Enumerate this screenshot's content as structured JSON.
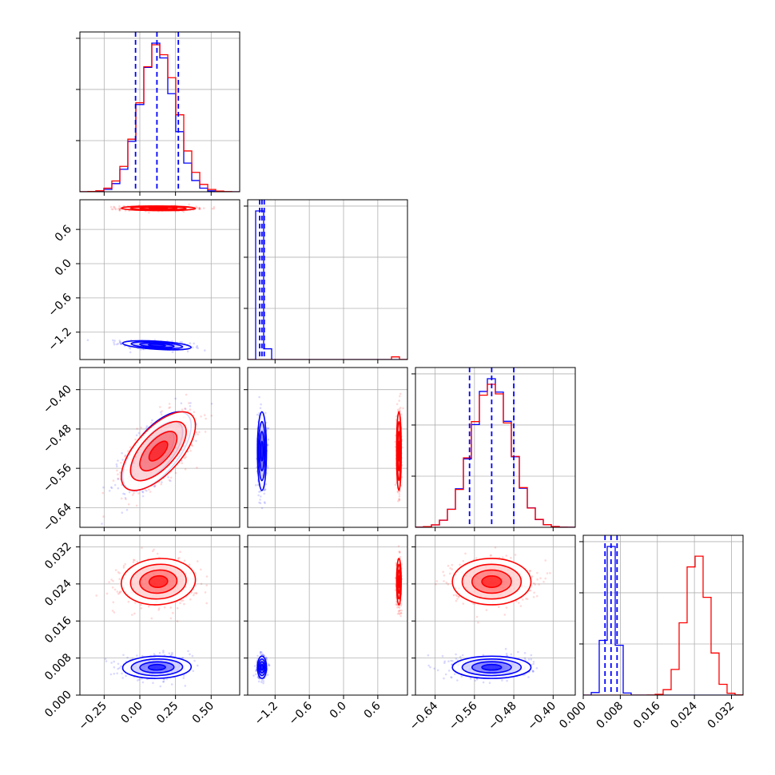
{
  "colors": {
    "series_a": "#ff0000",
    "series_b": "#0000ff",
    "grid": "#b0b0b0",
    "frame": "#000000"
  },
  "chart_data": {
    "type": "corner",
    "grid": true,
    "series": [
      {
        "name": "",
        "color": "#ff0000",
        "means": [
          0.13,
          0.97,
          -0.525,
          0.0245
        ],
        "sds": [
          0.13,
          0.02,
          0.04,
          0.0025
        ],
        "corr01": -0.05,
        "corr02": 0.65,
        "corr03": 0.08,
        "corr12": 0.0,
        "corr13": 0.0,
        "corr23": 0.0
      },
      {
        "name": "",
        "color": "#0000ff",
        "means": [
          0.12,
          -1.43,
          -0.525,
          0.006
        ],
        "sds": [
          0.12,
          0.04,
          0.04,
          0.0012
        ],
        "corr01": -0.45,
        "corr02": 0.65,
        "corr03": 0.05,
        "corr12": 0.0,
        "corr13": 0.0,
        "corr23": 0.0
      }
    ],
    "quantile_lines": [
      [
        -0.03,
        0.12,
        0.27
      ],
      [
        -1.47,
        -1.43,
        -1.39
      ],
      [
        -0.57,
        -0.525,
        -0.48
      ],
      [
        0.0047,
        0.006,
        0.0073
      ]
    ],
    "axes": [
      {
        "range": [
          -0.42,
          0.7
        ],
        "ticks": [
          -0.25,
          0.0,
          0.25,
          0.5
        ],
        "tick_labels": [
          "−0.25",
          "0.00",
          "0.25",
          "0.50"
        ]
      },
      {
        "range": [
          -1.68,
          1.12
        ],
        "ticks": [
          -1.2,
          -0.6,
          0.0,
          0.6
        ],
        "tick_labels": [
          "−1.2",
          "−0.6",
          "0.0",
          "0.6"
        ]
      },
      {
        "range": [
          -0.68,
          -0.355
        ],
        "ticks": [
          -0.64,
          -0.56,
          -0.48,
          -0.4
        ],
        "tick_labels": [
          "−0.64",
          "−0.56",
          "−0.48",
          "−0.40"
        ]
      },
      {
        "range": [
          0.0,
          0.0345
        ],
        "ticks": [
          0.0,
          0.008,
          0.016,
          0.024,
          0.032
        ],
        "tick_labels": [
          "0.000",
          "0.008",
          "0.016",
          "0.024",
          "0.032"
        ]
      }
    ]
  }
}
